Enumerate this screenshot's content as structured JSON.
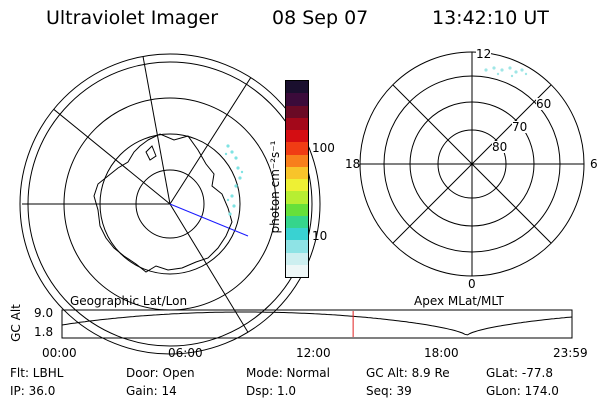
{
  "header": {
    "instrument": "Ultraviolet Imager",
    "date": "08 Sep 07",
    "time": "13:42:10 UT"
  },
  "left_panel": {
    "caption": "Geographic Lat/Lon",
    "coastline": "Antarctica and New Zealand"
  },
  "right_panel": {
    "caption": "Apex MLat/MLT",
    "mlt_labels": [
      "12",
      "18",
      "6",
      "0"
    ],
    "mlat_labels": [
      "60",
      "70",
      "80"
    ]
  },
  "colorbar": {
    "unit_label": "photon cm⁻²s⁻¹",
    "ticks": [
      "100",
      "10"
    ],
    "colors": [
      "#1a0f2e",
      "#3b0b3a",
      "#6a0a25",
      "#a3081a",
      "#d40d12",
      "#f03c14",
      "#f87f1c",
      "#f8c42a",
      "#eef034",
      "#b7ee32",
      "#66e03a",
      "#35d58c",
      "#39d2d2",
      "#8ee3e5",
      "#cdeff0",
      "#eef7f7"
    ]
  },
  "altitude_plot": {
    "ylabel": "GC Alt",
    "y_ticks": [
      "9.0",
      "1.8"
    ],
    "x_ticks": [
      "00:00",
      "06:00",
      "12:00",
      "18:00",
      "23:59"
    ],
    "current_time_marker": "13:42"
  },
  "status": {
    "row1": [
      {
        "label": "Flt:",
        "value": "LBHL"
      },
      {
        "label": "Door:",
        "value": "Open"
      },
      {
        "label": "Mode:",
        "value": "Normal"
      },
      {
        "label": "GC Alt:",
        "value": "8.9 Re"
      },
      {
        "label": "GLat:",
        "value": "-77.8"
      }
    ],
    "row2": [
      {
        "label": "IP:",
        "value": "36.0"
      },
      {
        "label": "Gain:",
        "value": "14"
      },
      {
        "label": "Dsp:",
        "value": "1.0"
      },
      {
        "label": "Seq:",
        "value": "39"
      },
      {
        "label": "GLon:",
        "value": "174.0"
      }
    ]
  }
}
